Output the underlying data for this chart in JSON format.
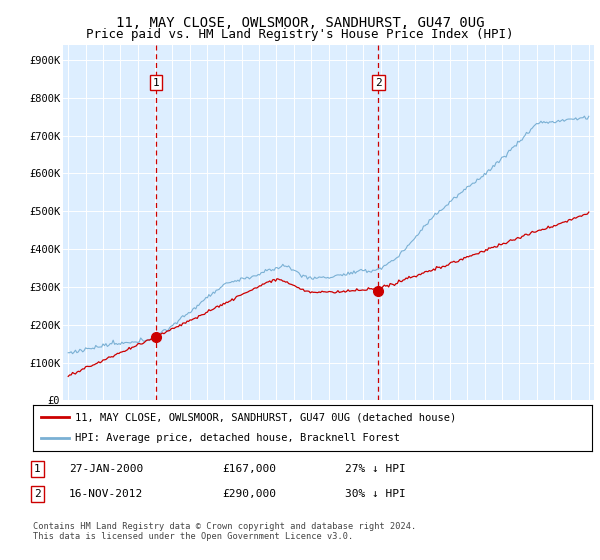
{
  "title": "11, MAY CLOSE, OWLSMOOR, SANDHURST, GU47 0UG",
  "subtitle": "Price paid vs. HM Land Registry's House Price Index (HPI)",
  "ytick_labels": [
    "£0",
    "£100K",
    "£200K",
    "£300K",
    "£400K",
    "£500K",
    "£600K",
    "£700K",
    "£800K",
    "£900K"
  ],
  "yticks": [
    0,
    100000,
    200000,
    300000,
    400000,
    500000,
    600000,
    700000,
    800000,
    900000
  ],
  "xlim_start": 1994.7,
  "xlim_end": 2025.3,
  "ylim": [
    0,
    940000
  ],
  "hpi_color": "#7ab0d4",
  "price_color": "#cc0000",
  "sale1_x": 2000.07,
  "sale1_y": 167000,
  "sale1_label": "1",
  "sale2_x": 2012.88,
  "sale2_y": 290000,
  "sale2_label": "2",
  "legend_line1": "11, MAY CLOSE, OWLSMOOR, SANDHURST, GU47 0UG (detached house)",
  "legend_line2": "HPI: Average price, detached house, Bracknell Forest",
  "table_row1": [
    "1",
    "27-JAN-2000",
    "£167,000",
    "27% ↓ HPI"
  ],
  "table_row2": [
    "2",
    "16-NOV-2012",
    "£290,000",
    "30% ↓ HPI"
  ],
  "footnote": "Contains HM Land Registry data © Crown copyright and database right 2024.\nThis data is licensed under the Open Government Licence v3.0.",
  "plot_bg_color": "#ddeeff",
  "title_fontsize": 10,
  "subtitle_fontsize": 9
}
